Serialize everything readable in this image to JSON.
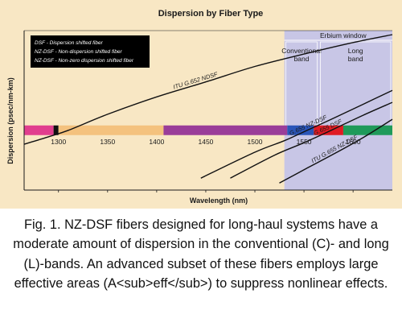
{
  "chart_data": {
    "type": "line",
    "title": "Dispersion by Fiber Type",
    "xlabel": "Wavelength (nm)",
    "ylabel": "Dispersion (psec/nm-km)",
    "xlim": [
      1265,
      1640
    ],
    "ylim": [
      -12,
      20
    ],
    "x_ticks": [
      1300,
      1350,
      1400,
      1450,
      1500,
      1550,
      1600
    ],
    "grid": false,
    "legend_position": "top-left",
    "legend": [
      "DSF - Dispersion shifted fiber",
      "NZ-DSF - Non-dispersion shifted fiber",
      "NZ-DSF - Non-zero dispersion shifted fiber"
    ],
    "regions": {
      "erbium_window": {
        "label": "Erbium window",
        "range": [
          1530,
          1640
        ],
        "color": "#c8c6e6"
      },
      "conventional": {
        "label": [
          "Conventional",
          "band"
        ],
        "range": [
          1530,
          1565
        ]
      },
      "long": {
        "label": [
          "Long",
          "band"
        ],
        "range": [
          1565,
          1640
        ]
      }
    },
    "band_bar": {
      "y": 0,
      "segments": [
        {
          "range": [
            1265,
            1295
          ],
          "color": "#e13e8e"
        },
        {
          "range": [
            1295,
            1300
          ],
          "color": "#111111"
        },
        {
          "range": [
            1300,
            1407
          ],
          "color": "#f4c27e"
        },
        {
          "range": [
            1407,
            1533
          ],
          "color": "#9a3d99"
        },
        {
          "range": [
            1533,
            1560
          ],
          "color": "#2a55b8"
        },
        {
          "range": [
            1560,
            1590
          ],
          "color": "#e01b24"
        },
        {
          "range": [
            1590,
            1640
          ],
          "color": "#1f9a5a"
        }
      ]
    },
    "series": [
      {
        "name": "ITU G.652 NDSF",
        "x": [
          1265,
          1290,
          1310,
          1350,
          1400,
          1450,
          1500,
          1550,
          1600,
          1640
        ],
        "y": [
          -2.8,
          -1.3,
          0,
          3.2,
          6.7,
          9.7,
          12.8,
          15.3,
          17.6,
          19.2
        ]
      },
      {
        "name": "G.655 NZ-DSF",
        "x": [
          1445,
          1500,
          1530,
          1550,
          1580,
          1610,
          1640
        ],
        "y": [
          -9.6,
          -4.4,
          -2.1,
          -0.3,
          2.4,
          5.2,
          8.0
        ]
      },
      {
        "name": "G.655 DSF",
        "x": [
          1475,
          1520,
          1550,
          1580,
          1610,
          1640
        ],
        "y": [
          -9.6,
          -5.0,
          -2.5,
          0.2,
          3.0,
          5.6
        ]
      },
      {
        "name": "ITU G.655 NZ-DSF",
        "x": [
          1525,
          1555,
          1580,
          1610,
          1640
        ],
        "y": [
          -10.6,
          -7.4,
          -4.8,
          -1.5,
          2.2
        ]
      }
    ],
    "curve_label_x": [
      1440,
      1555,
      1575,
      1582
    ]
  },
  "caption": "Fig. 1. NZ-DSF fibers designed for long-haul systems have a moderate amount of dispersion in the conventional (C)- and long (L)-bands. An advanced subset of these fibers employs large effective areas (A<sub>eff</sub>) to suppress nonlinear effects."
}
